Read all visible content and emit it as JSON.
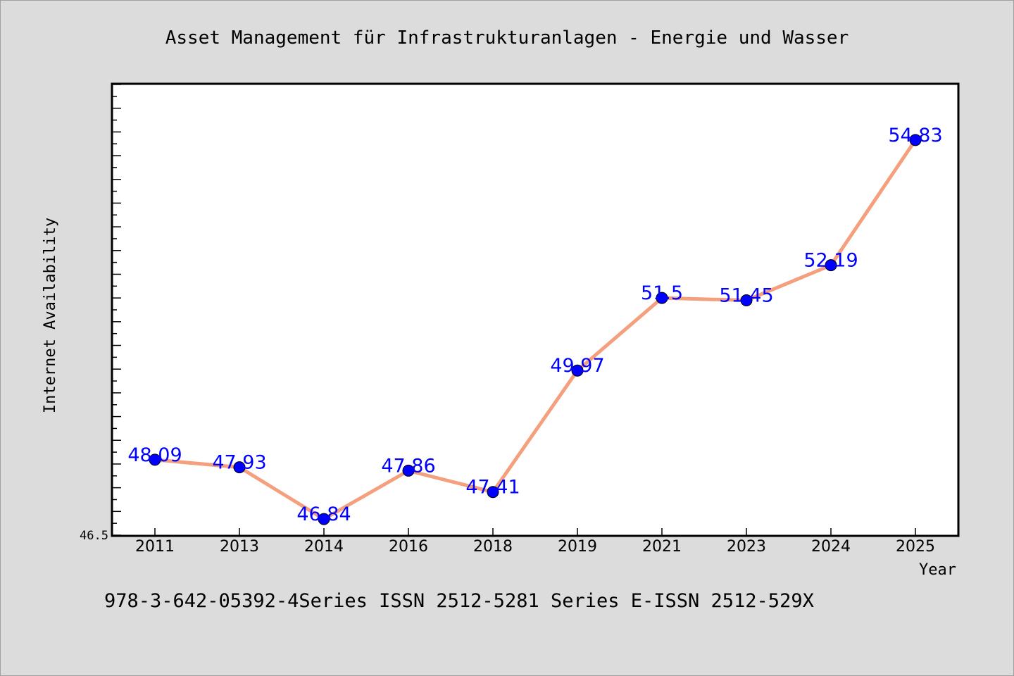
{
  "chart_data": {
    "type": "line",
    "title": "Asset Management für Infrastrukturanlagen - Energie und Wasser",
    "xlabel": "Year",
    "ylabel": "Internet Availability",
    "categories": [
      "2011",
      "2013",
      "2014",
      "2016",
      "2018",
      "2019",
      "2021",
      "2023",
      "2024",
      "2025"
    ],
    "values": [
      48.09,
      47.93,
      46.84,
      47.86,
      47.41,
      49.97,
      51.5,
      51.45,
      52.19,
      54.83
    ],
    "data_labels": [
      "48.09",
      "47.93",
      "46.84",
      "47.86",
      "47.41",
      "49.97",
      "51.5",
      "51.45",
      "52.19",
      "54.83"
    ],
    "ylim": [
      46.5,
      56
    ],
    "y_tick_labels": [
      {
        "value": 46.5,
        "label": "46.5"
      }
    ],
    "footer": "978-3-642-05392-4Series ISSN 2512-5281 Series E-ISSN 2512-529X",
    "grid": false,
    "colors": {
      "line": "#f4a07e",
      "marker": "#0000ff",
      "label": "#0000ff",
      "background": "#dcdcdc",
      "plot_background": "#ffffff"
    }
  }
}
